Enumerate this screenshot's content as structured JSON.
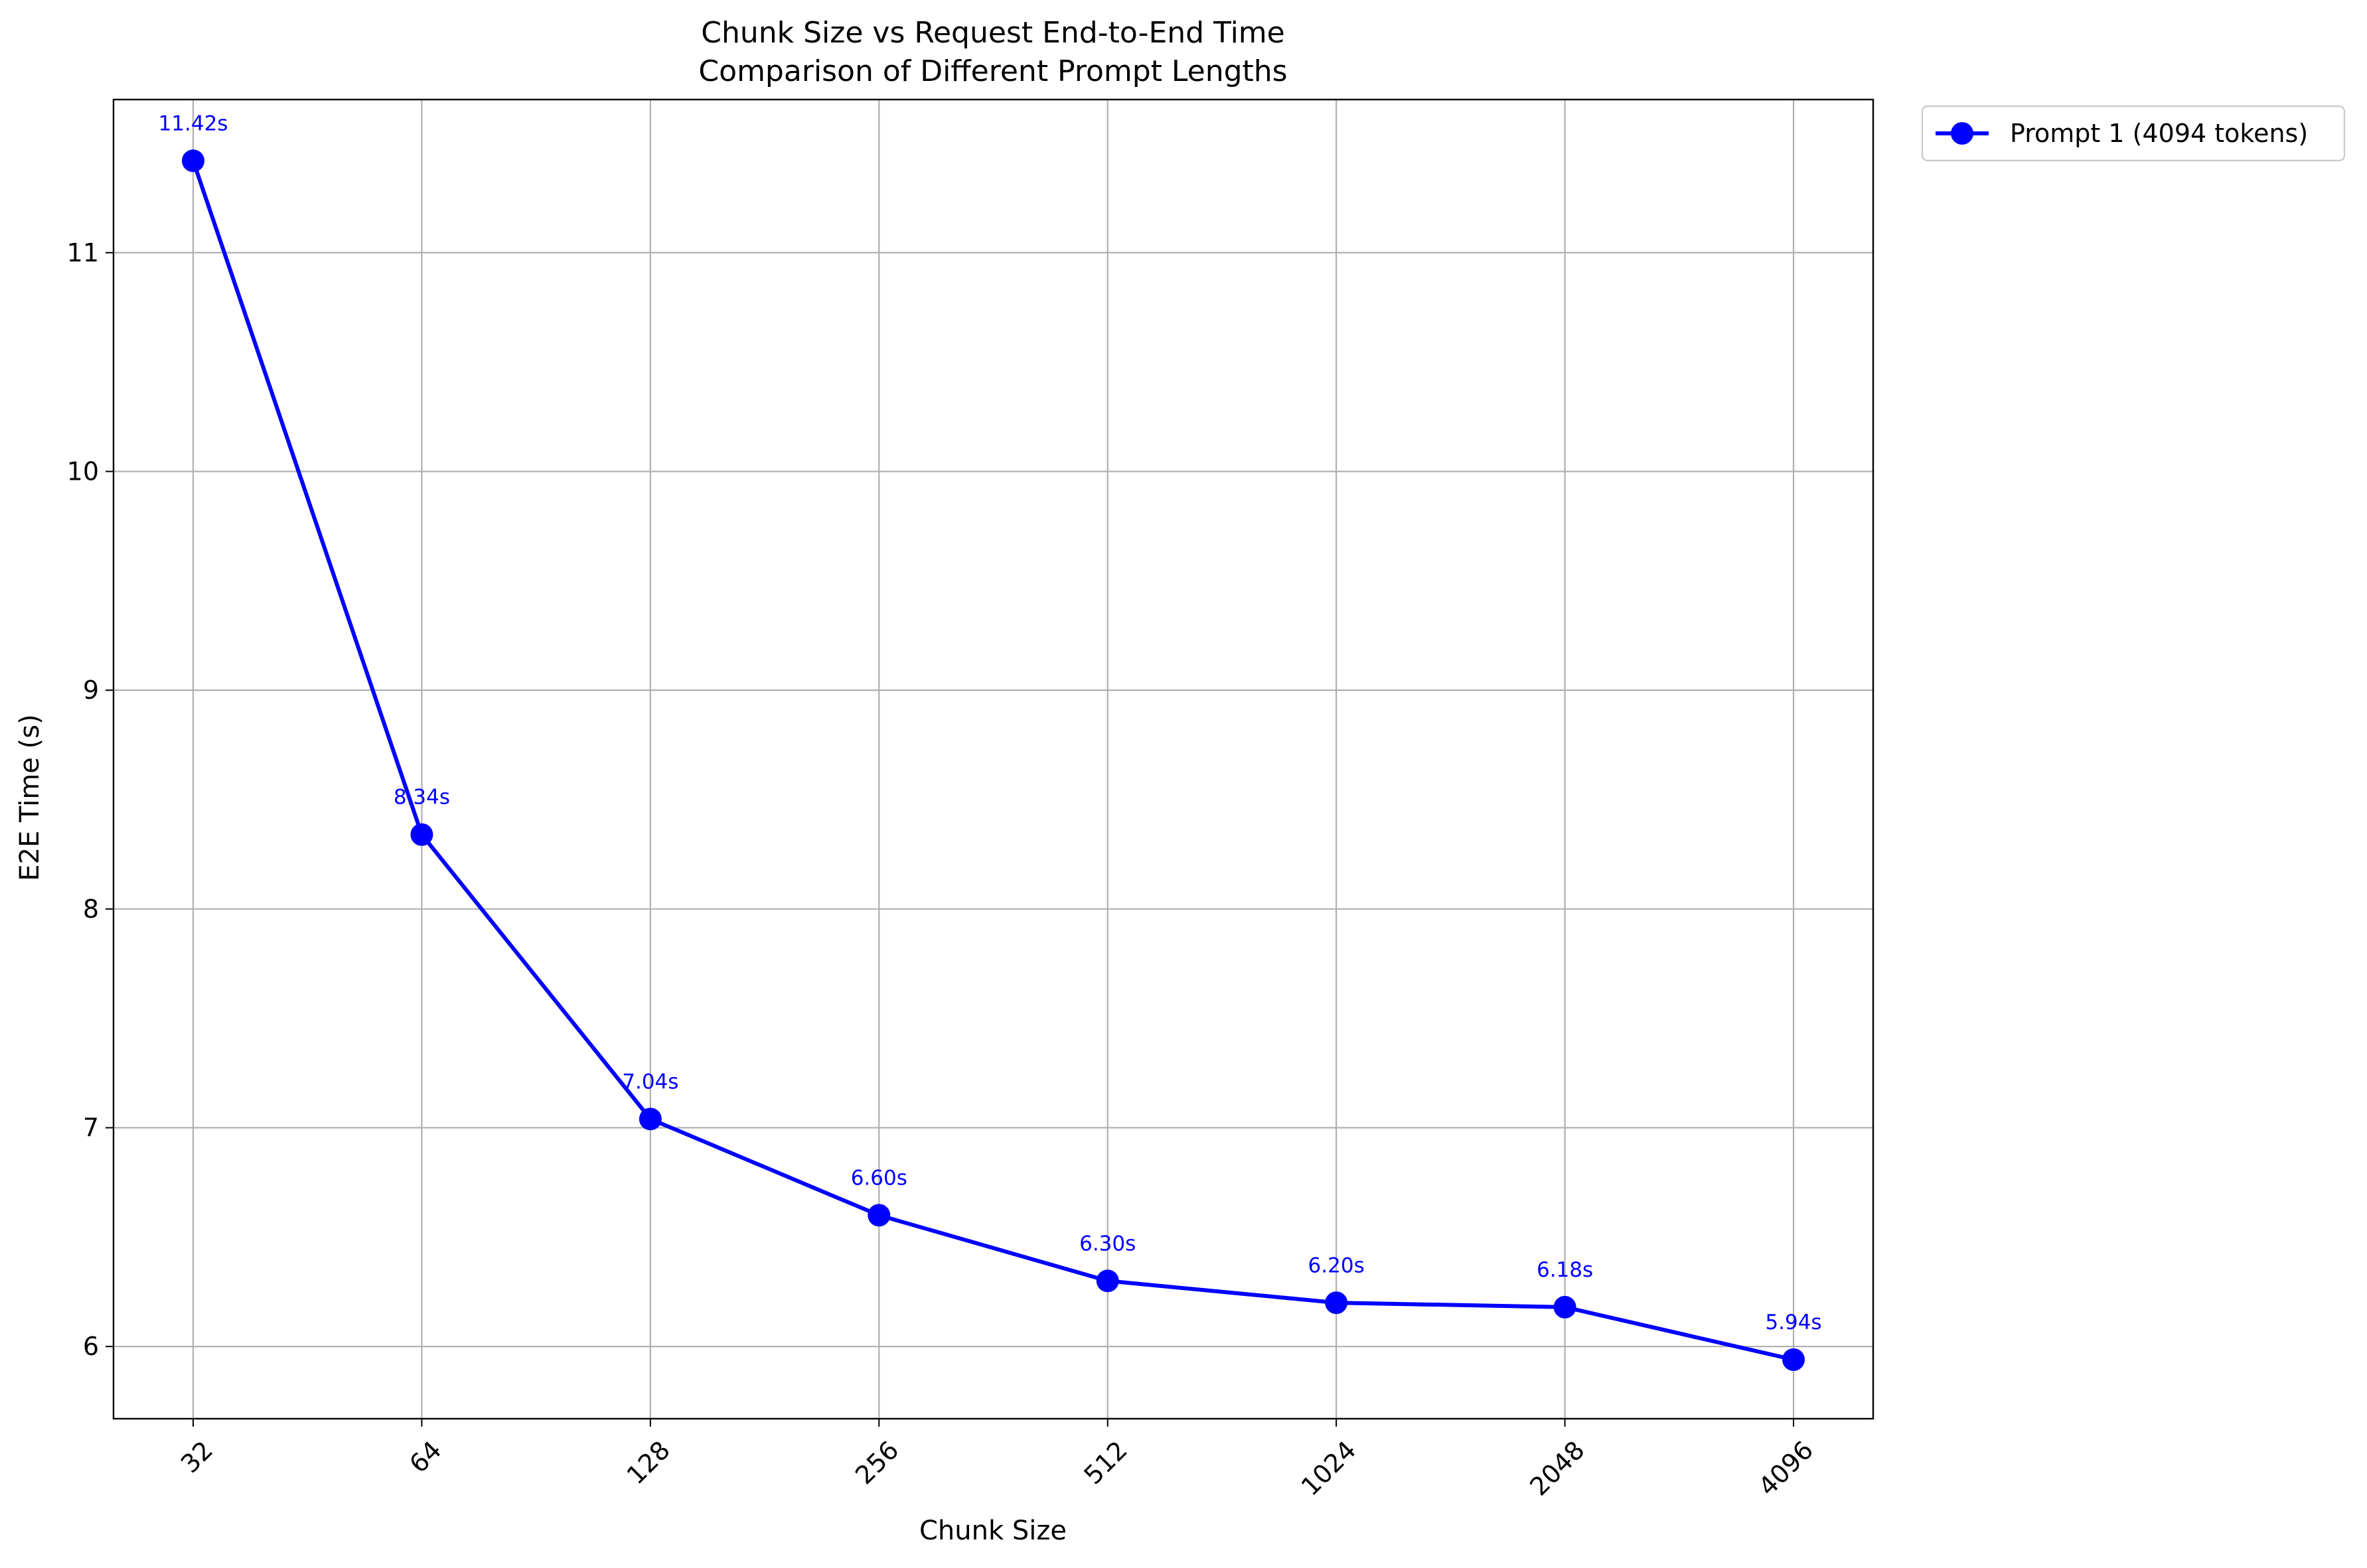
{
  "chart_data": {
    "type": "line",
    "title": "Chunk Size vs Request End-to-End Time",
    "subtitle": "Comparison of Different Prompt Lengths",
    "xlabel": "Chunk Size",
    "ylabel": "E2E Time (s)",
    "categories": [
      "32",
      "64",
      "128",
      "256",
      "512",
      "1024",
      "2048",
      "4096"
    ],
    "yticks": [
      "6",
      "7",
      "8",
      "9",
      "10",
      "11"
    ],
    "ylim": [
      5.67,
      11.7
    ],
    "grid": true,
    "legend_position": "outside-top-right",
    "series": [
      {
        "name": "Prompt 1 (4094 tokens)",
        "color": "#0000ff",
        "marker": "circle",
        "values": [
          11.42,
          8.34,
          7.04,
          6.6,
          6.3,
          6.2,
          6.18,
          5.94
        ],
        "labels": [
          "11.42s",
          "8.34s",
          "7.04s",
          "6.60s",
          "6.30s",
          "6.20s",
          "6.18s",
          "5.94s"
        ]
      }
    ]
  }
}
